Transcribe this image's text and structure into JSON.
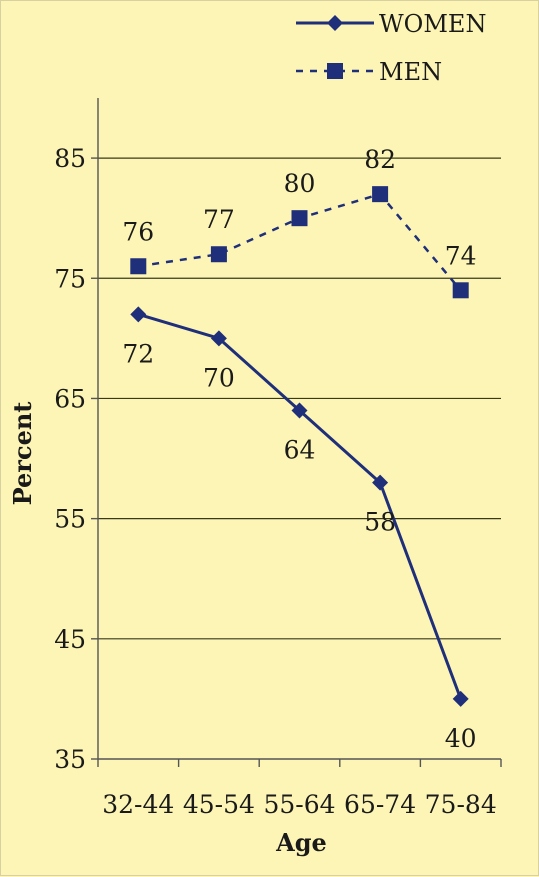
{
  "chart_data": {
    "type": "line",
    "categories": [
      "32-44",
      "45-54",
      "55-64",
      "65-74",
      "75-84"
    ],
    "series": [
      {
        "name": "WOMEN",
        "values": [
          72,
          70,
          64,
          58,
          40
        ],
        "line_style": "solid",
        "marker": "diamond"
      },
      {
        "name": "MEN",
        "values": [
          76,
          77,
          80,
          82,
          74
        ],
        "line_style": "dashed",
        "marker": "square"
      }
    ],
    "xlabel": "Age",
    "ylabel": "Percent",
    "ylim": [
      35,
      90
    ],
    "yticks": [
      35,
      45,
      55,
      65,
      75,
      85
    ],
    "grid": true,
    "legend_position": "top-right",
    "colors": {
      "series": "#1f2f7a",
      "grid": "#3a3a1a",
      "background": "#fdf5b6"
    }
  }
}
